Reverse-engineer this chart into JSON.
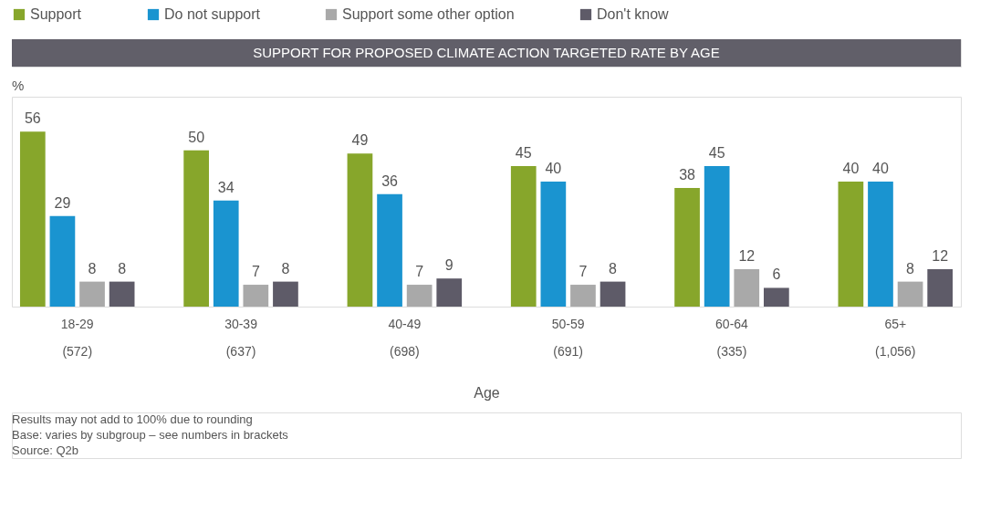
{
  "chart_data": {
    "type": "bar",
    "title": "SUPPORT FOR PROPOSED CLIMATE ACTION TARGETED RATE BY AGE",
    "ylabel": "%",
    "xlabel": "Age",
    "categories": [
      "18-29\n(572)",
      "30-39\n(637)",
      "40-49\n(698)",
      "50-59\n(691)",
      "60-64\n(335)",
      "65+\n(1,056)"
    ],
    "series": [
      {
        "name": "Support",
        "color": "#87a62b",
        "values": [
          56,
          50,
          49,
          45,
          38,
          40
        ]
      },
      {
        "name": "Do not support",
        "color": "#1a94d0",
        "values": [
          29,
          34,
          36,
          40,
          45,
          40
        ]
      },
      {
        "name": "Support some other option",
        "color": "#a9a9a9",
        "values": [
          8,
          7,
          7,
          7,
          12,
          8
        ]
      },
      {
        "name": "Don't know",
        "color": "#5e5b68",
        "values": [
          8,
          8,
          9,
          8,
          6,
          12
        ]
      }
    ],
    "data_labels": true,
    "legend": "top",
    "grid": false,
    "annotations": [
      "Results may not add to 100% due to rounding",
      "Base: varies by subgroup – see numbers in brackets",
      "Source: Q2b"
    ]
  }
}
